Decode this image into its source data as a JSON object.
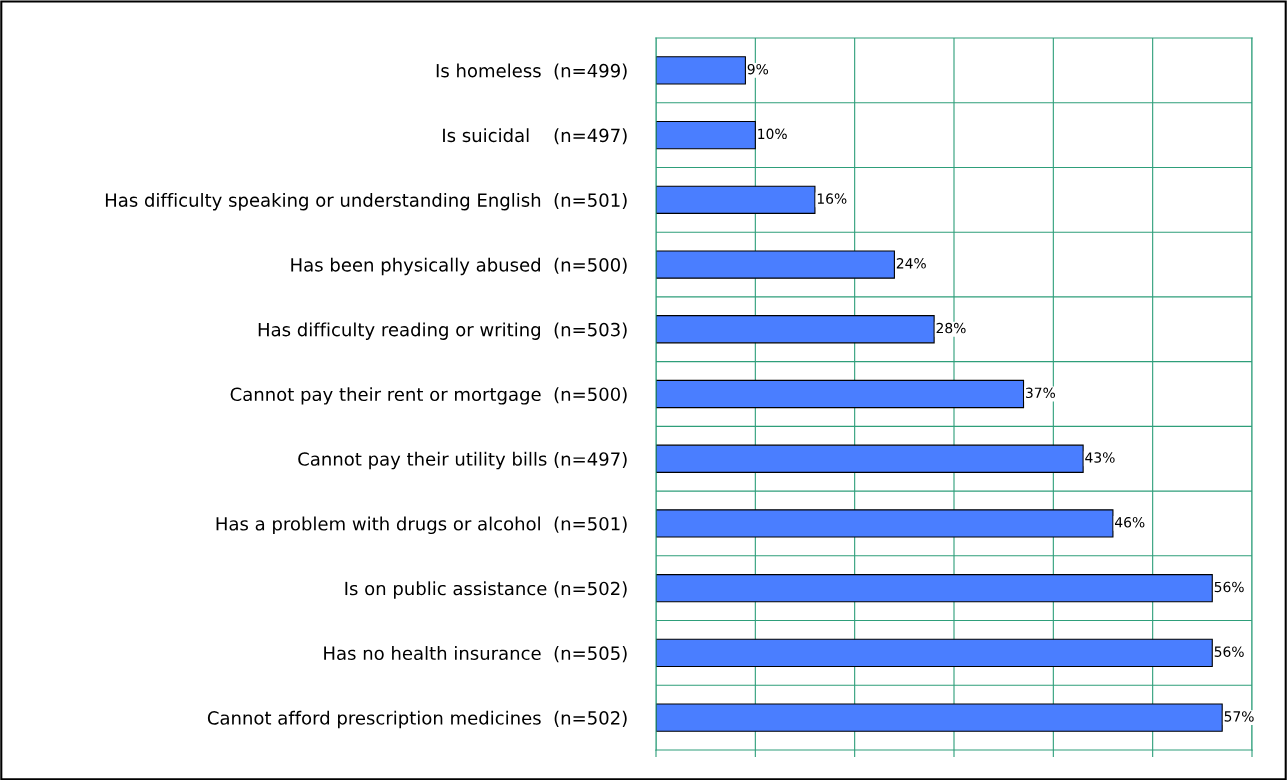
{
  "chart_data": {
    "type": "bar",
    "orientation": "horizontal",
    "categories": [
      "Is homeless  (n=499)",
      "Is suicidal    (n=497)",
      "Has difficulty speaking or understanding English  (n=501)",
      "Has been physically abused  (n=500)",
      "Has difficulty reading or writing  (n=503)",
      "Cannot pay their rent or mortgage  (n=500)",
      "Cannot pay their utility bills (n=497)",
      "Has a problem with drugs or alcohol  (n=501)",
      "Is on public assistance (n=502)",
      "Has no health insurance  (n=505)",
      "Cannot afford prescription medicines  (n=502)"
    ],
    "values": [
      9,
      10,
      16,
      24,
      28,
      37,
      43,
      46,
      56,
      56,
      57
    ],
    "value_labels": [
      "9%",
      "10%",
      "16%",
      "24%",
      "28%",
      "37%",
      "43%",
      "46%",
      "56%",
      "56%",
      "57%"
    ],
    "color": "#4a7eff",
    "xlim": [
      0,
      60
    ],
    "xticks": [
      {
        "value": 0,
        "label": null
      },
      {
        "value": 10,
        "label": null
      },
      {
        "value": 20,
        "label": null
      },
      {
        "value": 30,
        "label": null
      },
      {
        "value": 40,
        "label": null
      },
      {
        "value": 50,
        "label": null
      },
      {
        "value": 60,
        "label": null
      }
    ],
    "tick_labels": "y",
    "grid": true
  }
}
